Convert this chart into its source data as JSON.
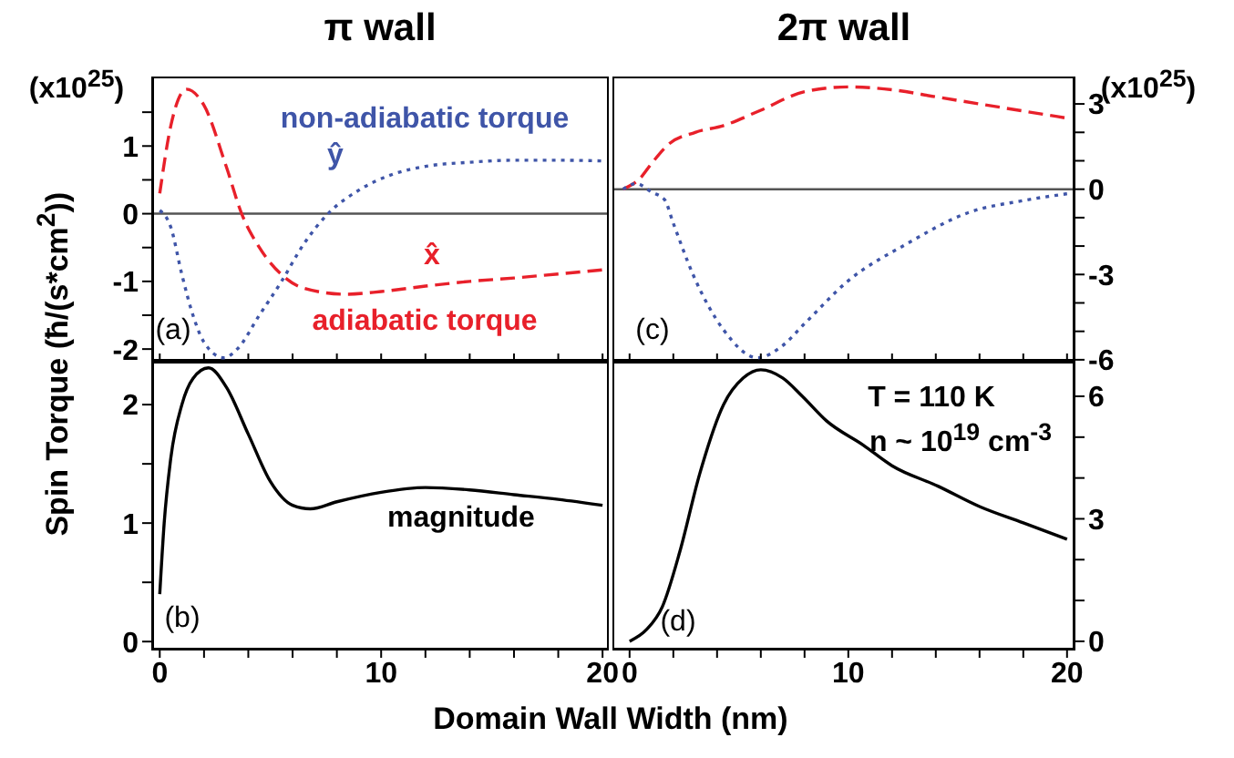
{
  "chart_data": [
    {
      "type": "line",
      "title": "π wall",
      "ylabel": "Spin Torque (ħ/(s*cm$^{2}$))",
      "xlim": [
        -0.3,
        20.2
      ],
      "xticks": [
        0,
        {
          "value": 2,
          "label": null
        },
        {
          "value": 4,
          "label": null
        },
        {
          "value": 6,
          "label": null
        },
        {
          "value": 8,
          "label": null
        },
        10,
        {
          "value": 12,
          "label": null
        },
        {
          "value": 14,
          "label": null
        },
        {
          "value": 16,
          "label": null
        },
        {
          "value": 18,
          "label": null
        },
        20
      ],
      "ylim": [
        -2.2,
        2
      ],
      "yticks": [
        -2,
        {
          "value": -1.5,
          "label": null
        },
        -1,
        {
          "value": -0.5,
          "label": null
        },
        0,
        {
          "value": 0.5,
          "label": null
        },
        1,
        {
          "value": 1.5,
          "label": null
        }
      ],
      "tick_labels": "y",
      "ref_lines": [
        {
          "axis": "y",
          "value": 0,
          "color": "#555555"
        }
      ],
      "series": [
        {
          "name": "adiabatic torque",
          "color": "#e8202a",
          "line_style": "dashed",
          "x": [
            0,
            0.5,
            1.2,
            2,
            3,
            3.7,
            4.5,
            5.5,
            6.5,
            8.4,
            10,
            12,
            14,
            16,
            18,
            20
          ],
          "values": [
            0.3,
            1.3,
            1.84,
            1.6,
            0.7,
            0,
            -0.5,
            -0.9,
            -1.1,
            -1.19,
            -1.15,
            -1.07,
            -1.0,
            -0.95,
            -0.89,
            -0.83
          ]
        },
        {
          "name": "non-adiabatic torque",
          "color": "#3f55a8",
          "line_style": "dotted",
          "x": [
            0,
            0.5,
            1,
            1.5,
            2,
            2.9,
            3.5,
            4.5,
            5.5,
            6.5,
            7.6,
            9,
            10.5,
            12,
            14,
            16,
            18,
            20
          ],
          "values": [
            0.05,
            -0.2,
            -0.9,
            -1.5,
            -1.9,
            -2.13,
            -2.0,
            -1.5,
            -1.0,
            -0.45,
            0,
            0.35,
            0.58,
            0.7,
            0.76,
            0.79,
            0.79,
            0.78
          ]
        }
      ],
      "annotations": [
        "(x10$^{25}$)",
        "ŷ",
        "x̂",
        "(a)"
      ]
    },
    {
      "type": "line",
      "xlabel": "Domain Wall Width (nm)",
      "xlim": [
        -0.3,
        20.2
      ],
      "xticks": [
        0,
        {
          "value": 2,
          "label": null
        },
        {
          "value": 4,
          "label": null
        },
        {
          "value": 6,
          "label": null
        },
        {
          "value": 8,
          "label": null
        },
        10,
        {
          "value": 12,
          "label": null
        },
        {
          "value": 14,
          "label": null
        },
        {
          "value": 16,
          "label": null
        },
        {
          "value": 18,
          "label": null
        },
        20
      ],
      "ylim": [
        -0.06,
        2.37
      ],
      "yticks": [
        0,
        {
          "value": 0.5,
          "label": null
        },
        1,
        {
          "value": 1.5,
          "label": null
        },
        2
      ],
      "series": [
        {
          "name": "magnitude",
          "color": "#000000",
          "line_style": "solid",
          "x": [
            0,
            0.2,
            0.5,
            1,
            1.5,
            2.2,
            3,
            4,
            5,
            6,
            6.8,
            8,
            10,
            12,
            14,
            16,
            18,
            20
          ],
          "values": [
            0.4,
            1.0,
            1.55,
            2.0,
            2.22,
            2.31,
            2.15,
            1.75,
            1.35,
            1.15,
            1.12,
            1.18,
            1.26,
            1.3,
            1.28,
            1.24,
            1.2,
            1.15
          ]
        }
      ],
      "annotations": [
        "(b)"
      ]
    },
    {
      "type": "line",
      "title": "2π wall",
      "xlim": [
        -0.7,
        20.3
      ],
      "xticks": [
        0,
        {
          "value": 2,
          "label": null
        },
        {
          "value": 4,
          "label": null
        },
        {
          "value": 6,
          "label": null
        },
        {
          "value": 8,
          "label": null
        },
        10,
        {
          "value": 12,
          "label": null
        },
        {
          "value": 14,
          "label": null
        },
        {
          "value": 16,
          "label": null
        },
        {
          "value": 18,
          "label": null
        },
        20
      ],
      "y2lim": [
        -6.1,
        3.9
      ],
      "y2ticks": [
        -6,
        {
          "value": -5,
          "label": null
        },
        {
          "value": -4,
          "label": null
        },
        -3,
        {
          "value": -2,
          "label": null
        },
        {
          "value": -1,
          "label": null
        },
        0,
        {
          "value": 1,
          "label": null
        },
        {
          "value": 2,
          "label": null
        },
        3
      ],
      "tick_labels": "y",
      "ref_lines": [
        {
          "axis": "y2",
          "value": 0,
          "color": "#555555"
        }
      ],
      "series": [
        {
          "color": "#e8202a",
          "line_style": "dashed",
          "axis": "y2",
          "x": [
            -0.3,
            0.5,
            1,
            1.8,
            3,
            4.3,
            6,
            8,
            10,
            12,
            14,
            16,
            18,
            20
          ],
          "values": [
            0,
            0.4,
            0.9,
            1.59,
            2.0,
            2.24,
            2.78,
            3.43,
            3.6,
            3.5,
            3.25,
            3.0,
            2.75,
            2.5
          ]
        },
        {
          "color": "#3f55a8",
          "line_style": "dotted",
          "axis": "y2",
          "x": [
            -0.3,
            0.3,
            1,
            1.6,
            2,
            2.9,
            4.3,
            5.85,
            7,
            8,
            10,
            12.7,
            15.5,
            18,
            20
          ],
          "values": [
            0,
            0.2,
            -0.1,
            -0.37,
            -1.2,
            -3.0,
            -4.95,
            -5.93,
            -5.5,
            -4.73,
            -3.22,
            -1.91,
            -0.82,
            -0.4,
            -0.16
          ]
        }
      ],
      "annotations": [
        "(x10$^{25}$)",
        "(c)"
      ]
    },
    {
      "type": "line",
      "xlim": [
        -0.7,
        20.3
      ],
      "xticks": [
        0,
        {
          "value": 2,
          "label": null
        },
        {
          "value": 4,
          "label": null
        },
        {
          "value": 6,
          "label": null
        },
        {
          "value": 8,
          "label": null
        },
        10,
        {
          "value": 12,
          "label": null
        },
        {
          "value": 14,
          "label": null
        },
        {
          "value": 16,
          "label": null
        },
        {
          "value": 18,
          "label": null
        },
        20
      ],
      "y2lim": [
        -0.18,
        6.87
      ],
      "y2ticks": [
        0,
        {
          "value": 1,
          "label": null
        },
        {
          "value": 2,
          "label": null
        },
        3,
        {
          "value": 4,
          "label": null
        },
        {
          "value": 5,
          "label": null
        },
        6
      ],
      "series": [
        {
          "color": "#000000",
          "line_style": "solid",
          "axis": "y2",
          "x": [
            0,
            0.8,
            1.5,
            2.3,
            3.2,
            4.3,
            5.2,
            6,
            7,
            7.9,
            9,
            10.7,
            12,
            14.1,
            16,
            18,
            20
          ],
          "values": [
            0,
            0.3,
            0.85,
            2.2,
            4.09,
            5.8,
            6.45,
            6.65,
            6.45,
            6.0,
            5.4,
            4.8,
            4.3,
            3.8,
            3.3,
            2.9,
            2.5
          ]
        }
      ],
      "annotations": [
        "T = 110 K",
        "n ~ 10$^{19}$ cm$^{-3}$",
        "(d)"
      ]
    }
  ]
}
